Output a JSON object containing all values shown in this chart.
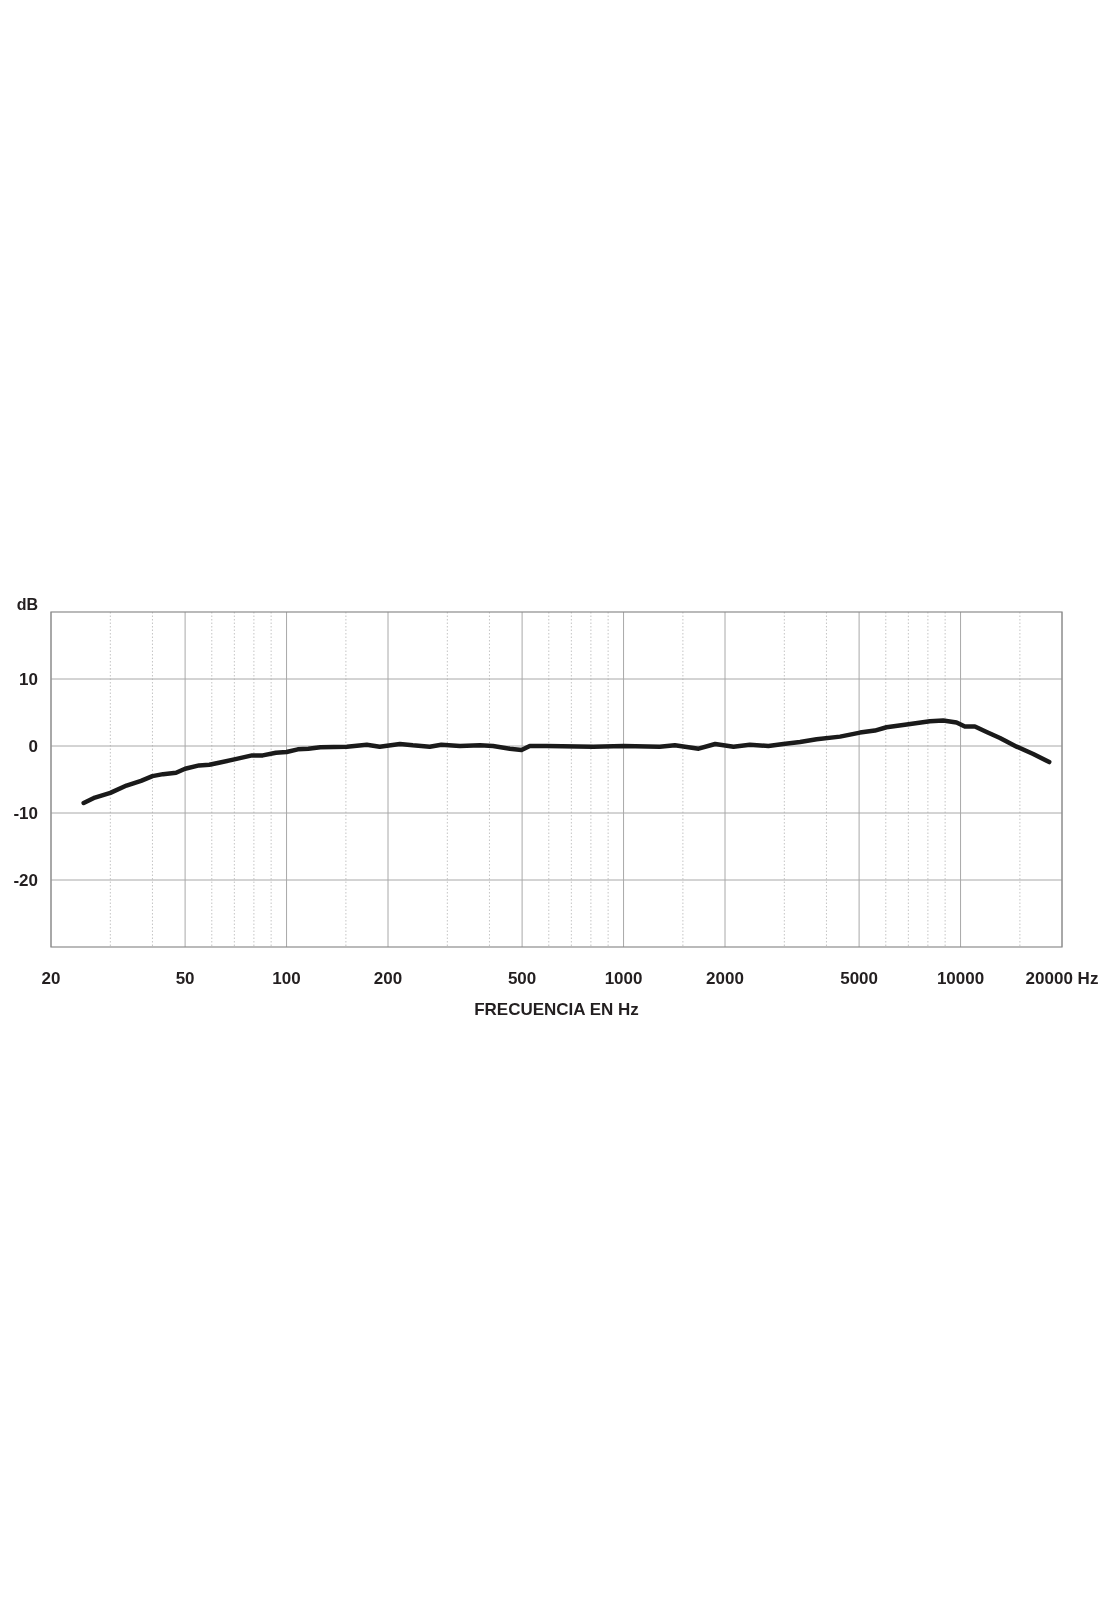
{
  "chart_data": {
    "type": "line",
    "xlabel": "FRECUENCIA EN Hz",
    "ylabel": "dB",
    "log": "x",
    "xlim": [
      20,
      20000
    ],
    "xticks": [
      20,
      50,
      100,
      200,
      500,
      1000,
      2000,
      5000,
      10000,
      {
        "value": 20000,
        "label": "20000 Hz"
      },
      {
        "value": 30,
        "label": null
      },
      {
        "value": 40,
        "label": null
      },
      {
        "value": 60,
        "label": null
      },
      {
        "value": 70,
        "label": null
      },
      {
        "value": 80,
        "label": null
      },
      {
        "value": 90,
        "label": null
      },
      {
        "value": 150,
        "label": null
      },
      {
        "value": 300,
        "label": null
      },
      {
        "value": 400,
        "label": null
      },
      {
        "value": 600,
        "label": null
      },
      {
        "value": 700,
        "label": null
      },
      {
        "value": 800,
        "label": null
      },
      {
        "value": 900,
        "label": null
      },
      {
        "value": 1500,
        "label": null
      },
      {
        "value": 3000,
        "label": null
      },
      {
        "value": 4000,
        "label": null
      },
      {
        "value": 6000,
        "label": null
      },
      {
        "value": 7000,
        "label": null
      },
      {
        "value": 8000,
        "label": null
      },
      {
        "value": 9000,
        "label": null
      },
      {
        "value": 15000,
        "label": null
      }
    ],
    "ylim": [
      -30,
      20
    ],
    "yticks": [
      -20,
      -10,
      0,
      10
    ],
    "grid": true,
    "color": "#1a1a1a",
    "x": [
      25,
      27,
      30,
      33.5,
      37,
      40,
      43,
      47,
      50,
      55,
      59,
      63,
      70,
      79,
      85,
      93,
      100,
      108,
      116,
      126,
      151,
      173,
      189,
      217,
      237,
      266,
      288,
      327,
      375,
      410,
      460,
      498,
      527,
      591,
      813,
      1000,
      1280,
      1420,
      1670,
      1870,
      2120,
      2370,
      2690,
      2980,
      3340,
      3740,
      4390,
      5030,
      5570,
      6030,
      6920,
      8110,
      8880,
      9730,
      10300,
      11030,
      11950,
      13090,
      14670,
      16430,
      18330
    ],
    "values": [
      -8.5,
      -7.7,
      -7.0,
      -5.9,
      -5.2,
      -4.5,
      -4.2,
      -4.0,
      -3.4,
      -2.9,
      -2.8,
      -2.5,
      -2.0,
      -1.4,
      -1.4,
      -1.0,
      -0.9,
      -0.5,
      -0.4,
      -0.2,
      -0.1,
      0.2,
      -0.1,
      0.3,
      0.1,
      -0.1,
      0.2,
      0,
      0.1,
      0,
      -0.4,
      -0.6,
      0,
      0,
      -0.1,
      0,
      -0.1,
      0.1,
      -0.4,
      0.3,
      -0.1,
      0.2,
      0,
      0.3,
      0.6,
      1.0,
      1.4,
      2.0,
      2.3,
      2.8,
      3.2,
      3.7,
      3.8,
      3.5,
      2.9,
      2.9,
      2.1,
      1.2,
      -0.1,
      -1.2,
      -2.4
    ]
  }
}
